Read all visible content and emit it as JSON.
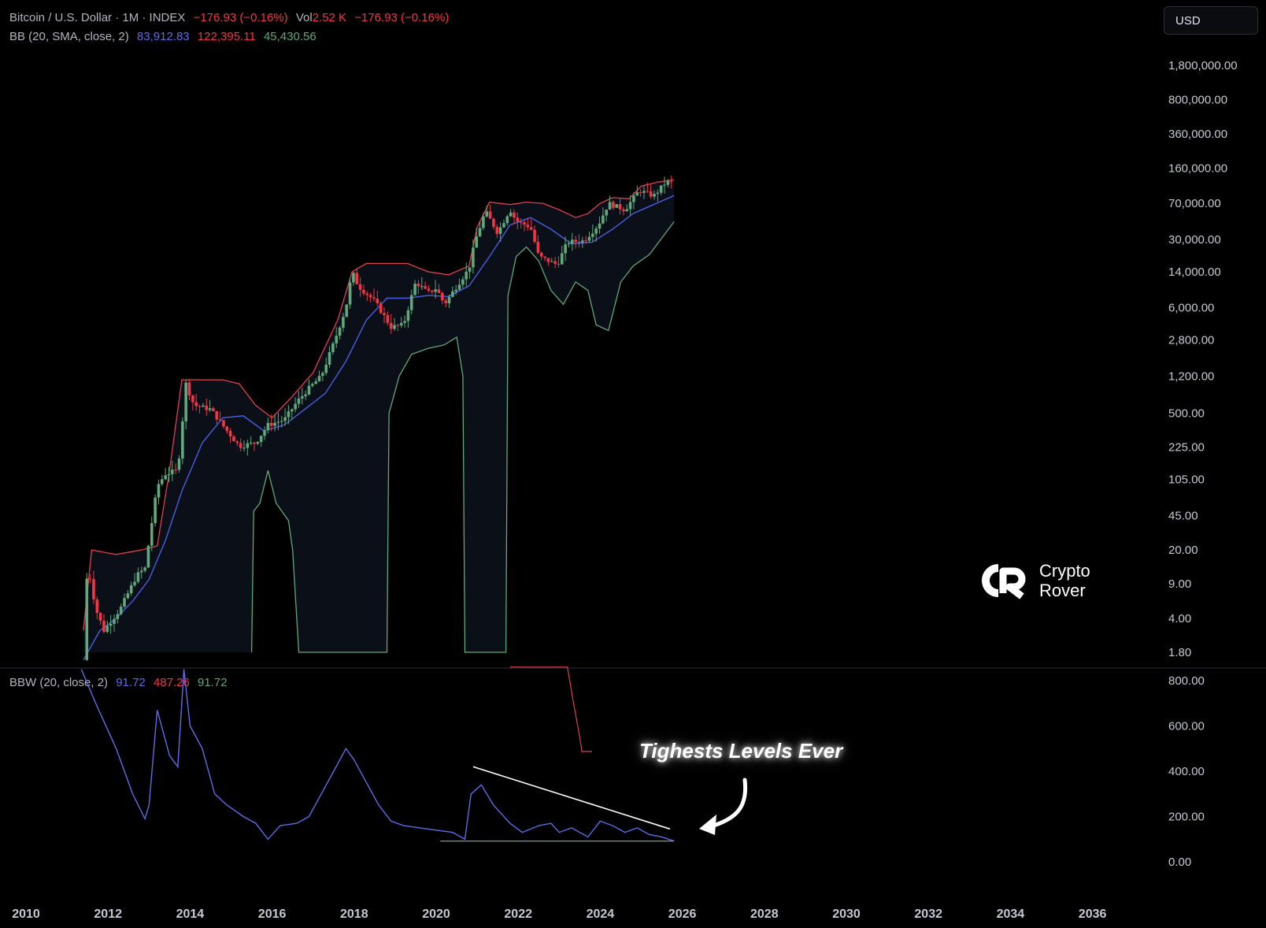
{
  "legend_main": {
    "title": "Bitcoin / U.S. Dollar · 1M · INDEX",
    "change": "−176.93 (−0.16%)",
    "vol_label": "Vol",
    "vol_value": "2.52 K",
    "vol_change": "−176.93 (−0.16%)"
  },
  "legend_bb": {
    "label": "BB (20, SMA, close, 2)",
    "basis": "83,912.83",
    "upper": "122,395.11",
    "lower": "45,430.56"
  },
  "legend_bbw": {
    "label": "BBW (20, close, 2)",
    "bbw": "91.72",
    "highest": "487.26",
    "lowest": "91.72"
  },
  "currency": "USD",
  "annotation": "Tighests Levels Ever",
  "watermark": {
    "line1": "Crypto",
    "line2": "Rover"
  },
  "colors": {
    "up": "#5fa97b",
    "down": "#f23645",
    "basis": "#4a5ee0",
    "upper": "#e0404e",
    "lower": "#5fa97b",
    "bbw": "#5b6ee8"
  },
  "chart_data": [
    {
      "type": "candlestick",
      "scale": "log",
      "x_axis": {
        "ticks": [
          "2010",
          "2012",
          "2014",
          "2016",
          "2018",
          "2020",
          "2022",
          "2024",
          "2026",
          "2028",
          "2030",
          "2032",
          "2034",
          "2036"
        ]
      },
      "y_axis": {
        "ticks": [
          "1,800,000.00",
          "800,000.00",
          "360,000.00",
          "160,000.00",
          "70,000.00",
          "30,000.00",
          "14,000.00",
          "6,000.00",
          "2,800.00",
          "1,200.00",
          "500.00",
          "225.00",
          "105.00",
          "45.00",
          "20.00",
          "9.00",
          "4.00",
          "1.80"
        ]
      },
      "price_path": [
        [
          2011.4,
          1.5
        ],
        [
          2011.5,
          15
        ],
        [
          2011.7,
          5
        ],
        [
          2011.9,
          3
        ],
        [
          2012.3,
          5
        ],
        [
          2012.7,
          11
        ],
        [
          2012.9,
          13
        ],
        [
          2013.2,
          90
        ],
        [
          2013.4,
          120
        ],
        [
          2013.7,
          130
        ],
        [
          2013.9,
          1000
        ],
        [
          2014.1,
          600
        ],
        [
          2014.5,
          550
        ],
        [
          2014.9,
          330
        ],
        [
          2015.2,
          230
        ],
        [
          2015.6,
          250
        ],
        [
          2015.9,
          380
        ],
        [
          2016.3,
          430
        ],
        [
          2016.6,
          650
        ],
        [
          2016.9,
          900
        ],
        [
          2017.2,
          1200
        ],
        [
          2017.5,
          2600
        ],
        [
          2017.8,
          6000
        ],
        [
          2017.95,
          14000
        ],
        [
          2018.1,
          10000
        ],
        [
          2018.5,
          7000
        ],
        [
          2018.9,
          3800
        ],
        [
          2019.2,
          4000
        ],
        [
          2019.5,
          11000
        ],
        [
          2019.8,
          8500
        ],
        [
          2020.0,
          9500
        ],
        [
          2020.2,
          6500
        ],
        [
          2020.6,
          11500
        ],
        [
          2020.8,
          15000
        ],
        [
          2020.95,
          29000
        ],
        [
          2021.2,
          58000
        ],
        [
          2021.5,
          35000
        ],
        [
          2021.8,
          61000
        ],
        [
          2021.95,
          46000
        ],
        [
          2022.3,
          40000
        ],
        [
          2022.5,
          20000
        ],
        [
          2022.95,
          16500
        ],
        [
          2023.2,
          28000
        ],
        [
          2023.6,
          29000
        ],
        [
          2023.95,
          42000
        ],
        [
          2024.2,
          70000
        ],
        [
          2024.6,
          60000
        ],
        [
          2024.95,
          95000
        ],
        [
          2025.3,
          83000
        ],
        [
          2025.6,
          115000
        ],
        [
          2025.8,
          113000
        ]
      ],
      "bollinger": {
        "basis": [
          [
            2011.4,
            1.5
          ],
          [
            2011.8,
            3
          ],
          [
            2012.2,
            4
          ],
          [
            2012.6,
            6
          ],
          [
            2013.0,
            10
          ],
          [
            2013.4,
            25
          ],
          [
            2013.8,
            80
          ],
          [
            2014.3,
            250
          ],
          [
            2014.8,
            450
          ],
          [
            2015.3,
            470
          ],
          [
            2015.8,
            330
          ],
          [
            2016.3,
            380
          ],
          [
            2016.8,
            550
          ],
          [
            2017.3,
            800
          ],
          [
            2017.8,
            1700
          ],
          [
            2018.3,
            4500
          ],
          [
            2018.8,
            7500
          ],
          [
            2019.3,
            7500
          ],
          [
            2019.8,
            8000
          ],
          [
            2020.3,
            7800
          ],
          [
            2020.8,
            10000
          ],
          [
            2021.3,
            20000
          ],
          [
            2021.8,
            42000
          ],
          [
            2022.3,
            50000
          ],
          [
            2022.8,
            38000
          ],
          [
            2023.3,
            27000
          ],
          [
            2023.8,
            28000
          ],
          [
            2024.3,
            38000
          ],
          [
            2024.8,
            55000
          ],
          [
            2025.3,
            68000
          ],
          [
            2025.8,
            83912.83
          ]
        ],
        "upper": [
          [
            2011.4,
            3
          ],
          [
            2011.6,
            20
          ],
          [
            2012.2,
            18
          ],
          [
            2012.8,
            20
          ],
          [
            2013.2,
            22
          ],
          [
            2013.5,
            130
          ],
          [
            2013.8,
            1100
          ],
          [
            2014.3,
            1100
          ],
          [
            2014.8,
            1100
          ],
          [
            2015.2,
            1000
          ],
          [
            2015.6,
            600
          ],
          [
            2016.0,
            450
          ],
          [
            2016.5,
            750
          ],
          [
            2017.0,
            1300
          ],
          [
            2017.6,
            4500
          ],
          [
            2017.95,
            14000
          ],
          [
            2018.3,
            17000
          ],
          [
            2018.8,
            17000
          ],
          [
            2019.3,
            17000
          ],
          [
            2019.8,
            14000
          ],
          [
            2020.3,
            13000
          ],
          [
            2020.8,
            16000
          ],
          [
            2021.0,
            40000
          ],
          [
            2021.3,
            72000
          ],
          [
            2021.8,
            68000
          ],
          [
            2022.2,
            72000
          ],
          [
            2022.6,
            70000
          ],
          [
            2023.0,
            60000
          ],
          [
            2023.4,
            50000
          ],
          [
            2023.7,
            55000
          ],
          [
            2024.0,
            70000
          ],
          [
            2024.3,
            80000
          ],
          [
            2024.7,
            78000
          ],
          [
            2025.0,
            105000
          ],
          [
            2025.4,
            115000
          ],
          [
            2025.8,
            122395.11
          ]
        ],
        "lower": [
          [
            2015.5,
            1.8
          ],
          [
            2015.55,
            50
          ],
          [
            2015.7,
            60
          ],
          [
            2015.9,
            130
          ],
          [
            2016.1,
            60
          ],
          [
            2016.4,
            40
          ],
          [
            2016.5,
            20
          ],
          [
            2016.65,
            1.8
          ],
          [
            2018.8,
            1.8
          ],
          [
            2018.85,
            500
          ],
          [
            2019.1,
            1200
          ],
          [
            2019.4,
            2000
          ],
          [
            2019.8,
            2300
          ],
          [
            2020.2,
            2500
          ],
          [
            2020.5,
            3000
          ],
          [
            2020.65,
            1200
          ],
          [
            2020.7,
            1.8
          ],
          [
            2021.7,
            1.8
          ],
          [
            2021.75,
            8000
          ],
          [
            2021.95,
            20000
          ],
          [
            2022.2,
            25000
          ],
          [
            2022.5,
            18000
          ],
          [
            2022.8,
            9000
          ],
          [
            2023.1,
            6500
          ],
          [
            2023.4,
            11000
          ],
          [
            2023.7,
            9000
          ],
          [
            2023.9,
            4000
          ],
          [
            2024.2,
            3500
          ],
          [
            2024.5,
            11000
          ],
          [
            2024.8,
            16000
          ],
          [
            2025.2,
            21000
          ],
          [
            2025.8,
            45430.56
          ]
        ]
      }
    },
    {
      "type": "line",
      "y_axis": {
        "ticks": [
          "800.00",
          "600.00",
          "400.00",
          "200.00",
          "0.00"
        ]
      },
      "series": [
        {
          "name": "BBW",
          "points": [
            [
              2011.35,
              850
            ],
            [
              2011.7,
              700
            ],
            [
              2012.2,
              500
            ],
            [
              2012.6,
              300
            ],
            [
              2012.9,
              190
            ],
            [
              2013.0,
              250
            ],
            [
              2013.2,
              670
            ],
            [
              2013.5,
              470
            ],
            [
              2013.7,
              420
            ],
            [
              2013.85,
              850
            ],
            [
              2014.0,
              600
            ],
            [
              2014.3,
              500
            ],
            [
              2014.6,
              300
            ],
            [
              2014.9,
              250
            ],
            [
              2015.3,
              200
            ],
            [
              2015.6,
              170
            ],
            [
              2015.9,
              100
            ],
            [
              2016.2,
              160
            ],
            [
              2016.6,
              170
            ],
            [
              2016.9,
              200
            ],
            [
              2017.2,
              300
            ],
            [
              2017.5,
              400
            ],
            [
              2017.8,
              500
            ],
            [
              2018.0,
              450
            ],
            [
              2018.3,
              350
            ],
            [
              2018.6,
              250
            ],
            [
              2018.9,
              180
            ],
            [
              2019.2,
              160
            ],
            [
              2019.6,
              150
            ],
            [
              2020.0,
              140
            ],
            [
              2020.4,
              130
            ],
            [
              2020.7,
              100
            ],
            [
              2020.85,
              300
            ],
            [
              2021.1,
              340
            ],
            [
              2021.4,
              250
            ],
            [
              2021.8,
              170
            ],
            [
              2022.1,
              130
            ],
            [
              2022.5,
              160
            ],
            [
              2022.8,
              170
            ],
            [
              2023.0,
              130
            ],
            [
              2023.3,
              150
            ],
            [
              2023.7,
              110
            ],
            [
              2024.0,
              180
            ],
            [
              2024.3,
              160
            ],
            [
              2024.6,
              130
            ],
            [
              2024.9,
              150
            ],
            [
              2025.2,
              120
            ],
            [
              2025.5,
              110
            ],
            [
              2025.8,
              91.72
            ]
          ]
        },
        {
          "name": "Highest Expansion",
          "points": [
            [
              2021.8,
              860
            ],
            [
              2023.2,
              860
            ],
            [
              2023.35,
              700
            ],
            [
              2023.5,
              550
            ],
            [
              2023.55,
              487.26
            ],
            [
              2023.8,
              487.26
            ]
          ]
        },
        {
          "name": "Lowest Contraction",
          "points": [
            [
              2020.1,
              91.72
            ],
            [
              2025.8,
              91.72
            ]
          ]
        }
      ],
      "trendline": [
        [
          2020.9,
          420
        ],
        [
          2025.7,
          145
        ]
      ]
    }
  ]
}
